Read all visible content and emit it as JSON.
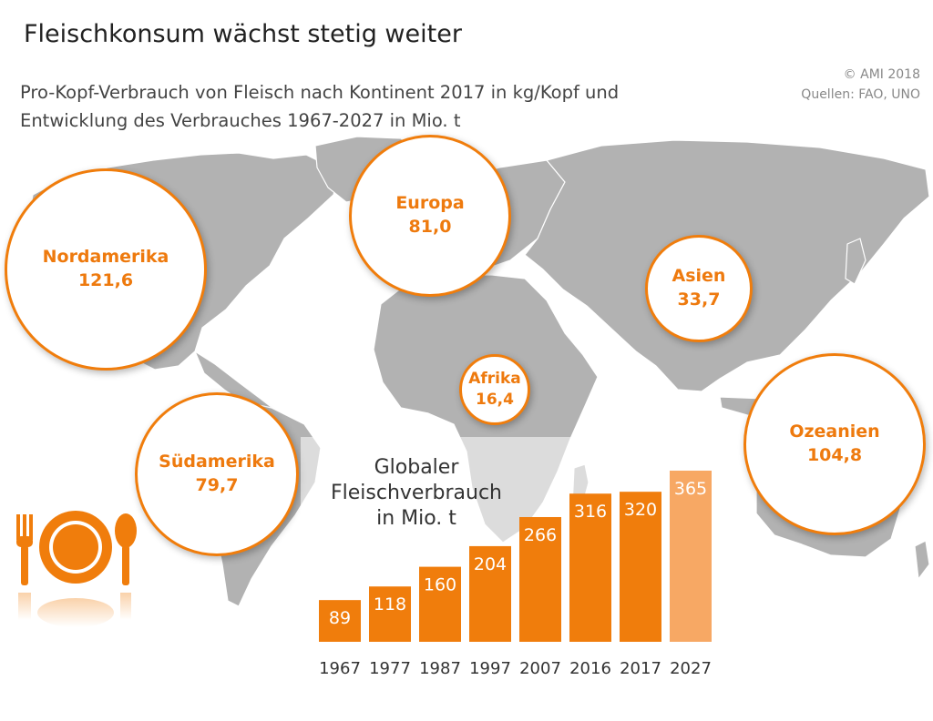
{
  "header": {
    "title": "Fleischkonsum wächst stetig weiter",
    "subtitle_line1": "Pro-Kopf-Verbrauch von Fleisch nach Kontinent 2017 in kg/Kopf und",
    "subtitle_line2": "Entwicklung des Verbrauches 1967-2027 in Mio. t",
    "credit_line1": "© AMI 2018",
    "credit_line2": "Quellen: FAO, UNO"
  },
  "colors": {
    "accent": "#f07d0c",
    "bar": "#f07d0c",
    "bar_forecast": "#f7a864",
    "map_land": "#b2b2b2"
  },
  "icons": [
    "place-setting-icon"
  ],
  "continents": [
    {
      "name": "Nordamerika",
      "value": "121,6"
    },
    {
      "name": "Europa",
      "value": "81,0"
    },
    {
      "name": "Asien",
      "value": "33,7"
    },
    {
      "name": "Afrika",
      "value": "16,4"
    },
    {
      "name": "Südamerika",
      "value": "79,7"
    },
    {
      "name": "Ozeanien",
      "value": "104,8"
    }
  ],
  "chart_data": {
    "type": "bar",
    "title_lines": [
      "Globaler",
      "Fleischverbrauch",
      "in Mio. t"
    ],
    "categories": [
      "1967",
      "1977",
      "1987",
      "1997",
      "2007",
      "2016",
      "2017",
      "2027"
    ],
    "values": [
      89,
      118,
      160,
      204,
      266,
      316,
      320,
      365
    ],
    "forecast_index": 7,
    "ylim": [
      0,
      365
    ],
    "grid": false,
    "legend": "none"
  }
}
